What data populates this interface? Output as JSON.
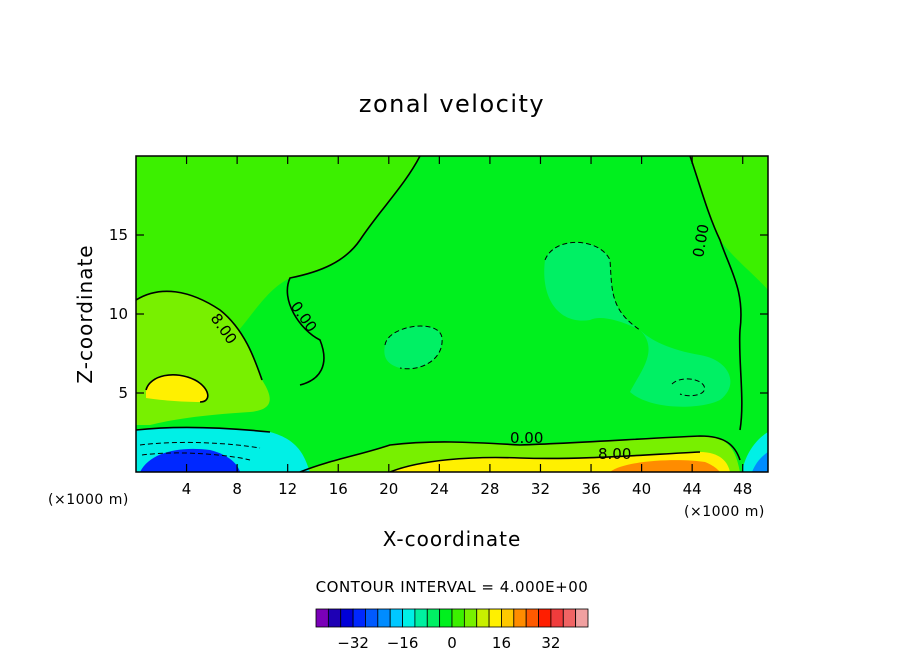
{
  "chart_data": {
    "type": "heatmap",
    "subtype": "filled-contour",
    "title": "zonal velocity",
    "xlabel": "X-coordinate",
    "ylabel": "Z-coordinate",
    "x_unit": "(×1000 m)",
    "y_unit": "(×1000 m)",
    "xlim": [
      0,
      50
    ],
    "ylim": [
      0,
      20
    ],
    "x_ticks": [
      4,
      8,
      12,
      16,
      20,
      24,
      28,
      32,
      36,
      40,
      44,
      48
    ],
    "y_ticks": [
      5,
      10,
      15
    ],
    "contour_interval_text": "CONTOUR INTERVAL = 4.000E+00",
    "contour_labels": [
      "8.00",
      "0.00",
      "0.00",
      "0.00",
      "8.00"
    ],
    "colorbar": {
      "levels": [
        -36,
        -32,
        -28,
        -24,
        -20,
        -16,
        -12,
        -8,
        -4,
        0,
        4,
        8,
        12,
        16,
        20,
        24,
        28,
        32,
        36
      ],
      "tick_values": [
        -32,
        -16,
        0,
        16,
        32
      ],
      "tick_labels": [
        "−32",
        "−16",
        "0",
        "16",
        "32"
      ],
      "colors": [
        "#7a00b8",
        "#1e00b4",
        "#0000d8",
        "#0028ff",
        "#005aff",
        "#008cff",
        "#00c8ff",
        "#00f0e6",
        "#00f0a0",
        "#00f064",
        "#00f01e",
        "#3cf000",
        "#78f000",
        "#c8f000",
        "#fff000",
        "#ffc800",
        "#ff8c00",
        "#ff5a00",
        "#ff1e00",
        "#f03c3c",
        "#f06464",
        "#f0a0a0"
      ]
    },
    "regions": [
      {
        "name": "background",
        "value": 0
      },
      {
        "name": "upper-left",
        "value": 4
      },
      {
        "name": "mid-right-negative",
        "value": -4
      },
      {
        "name": "center-negative",
        "value": -4
      },
      {
        "name": "left-positive",
        "value": 8
      },
      {
        "name": "left-jet-core",
        "value": 16
      },
      {
        "name": "surface-positive-band",
        "value": 8
      },
      {
        "name": "surface-positive-core",
        "value": 16
      },
      {
        "name": "surface-right-core",
        "value": 24
      },
      {
        "name": "surface-left-negative",
        "value": -12
      },
      {
        "name": "surface-left-negative-core",
        "value": -28
      },
      {
        "name": "surface-right-negative",
        "value": -12
      },
      {
        "name": "surface-right-negative-core",
        "value": -20
      }
    ]
  }
}
